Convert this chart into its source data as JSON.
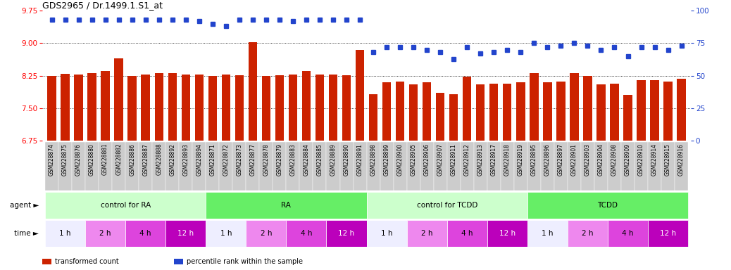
{
  "title": "GDS2965 / Dr.1499.1.S1_at",
  "samples": [
    "GSM228874",
    "GSM228875",
    "GSM228876",
    "GSM228880",
    "GSM228881",
    "GSM228882",
    "GSM228886",
    "GSM228887",
    "GSM228888",
    "GSM228892",
    "GSM228893",
    "GSM228894",
    "GSM228871",
    "GSM228872",
    "GSM228873",
    "GSM228877",
    "GSM228878",
    "GSM228879",
    "GSM228883",
    "GSM228884",
    "GSM228885",
    "GSM228889",
    "GSM228890",
    "GSM228891",
    "GSM228898",
    "GSM228899",
    "GSM228900",
    "GSM228905",
    "GSM228906",
    "GSM228907",
    "GSM228911",
    "GSM228912",
    "GSM228913",
    "GSM228917",
    "GSM228918",
    "GSM228919",
    "GSM228895",
    "GSM228896",
    "GSM228897",
    "GSM228901",
    "GSM228903",
    "GSM228904",
    "GSM228908",
    "GSM228909",
    "GSM228910",
    "GSM228914",
    "GSM228915",
    "GSM228916"
  ],
  "bar_values": [
    8.25,
    8.29,
    8.27,
    8.3,
    8.35,
    8.65,
    8.25,
    8.27,
    8.3,
    8.3,
    8.28,
    8.28,
    8.25,
    8.27,
    8.26,
    9.02,
    8.25,
    8.26,
    8.27,
    8.36,
    8.27,
    8.27,
    8.26,
    8.84,
    7.82,
    8.1,
    8.12,
    8.05,
    8.09,
    7.85,
    7.82,
    8.22,
    8.05,
    8.06,
    8.06,
    8.09,
    8.3,
    8.1,
    8.12,
    8.3,
    8.25,
    8.05,
    8.06,
    7.8,
    8.15,
    8.15,
    8.12,
    8.17
  ],
  "percentile_values": [
    93,
    93,
    93,
    93,
    93,
    93,
    93,
    93,
    93,
    93,
    93,
    92,
    90,
    88,
    93,
    93,
    93,
    93,
    92,
    93,
    93,
    93,
    93,
    93,
    68,
    72,
    72,
    72,
    70,
    68,
    63,
    72,
    67,
    68,
    70,
    68,
    75,
    72,
    73,
    75,
    73,
    70,
    72,
    65,
    72,
    72,
    70,
    73
  ],
  "ylim_left": [
    6.75,
    9.75
  ],
  "ylim_right": [
    0,
    100
  ],
  "yticks_left": [
    6.75,
    7.5,
    8.25,
    9.0,
    9.75
  ],
  "yticks_right": [
    0,
    25,
    50,
    75,
    100
  ],
  "hlines": [
    7.5,
    8.25,
    9.0
  ],
  "bar_color": "#CC2200",
  "dot_color": "#2244CC",
  "background_color": "#FFFFFF",
  "xticklabel_bg": "#CCCCCC",
  "agents": [
    {
      "label": "control for RA",
      "start": 0,
      "end": 12,
      "color": "#CCFFCC"
    },
    {
      "label": "RA",
      "start": 12,
      "end": 24,
      "color": "#66EE66"
    },
    {
      "label": "control for TCDD",
      "start": 24,
      "end": 36,
      "color": "#CCFFCC"
    },
    {
      "label": "TCDD",
      "start": 36,
      "end": 48,
      "color": "#66EE66"
    }
  ],
  "times": [
    {
      "label": "1 h",
      "start": 0,
      "end": 3,
      "color": "#EEEEFF",
      "tcolor": "black"
    },
    {
      "label": "2 h",
      "start": 3,
      "end": 6,
      "color": "#EE88EE",
      "tcolor": "black"
    },
    {
      "label": "4 h",
      "start": 6,
      "end": 9,
      "color": "#DD44DD",
      "tcolor": "black"
    },
    {
      "label": "12 h",
      "start": 9,
      "end": 12,
      "color": "#BB00BB",
      "tcolor": "white"
    },
    {
      "label": "1 h",
      "start": 12,
      "end": 15,
      "color": "#EEEEFF",
      "tcolor": "black"
    },
    {
      "label": "2 h",
      "start": 15,
      "end": 18,
      "color": "#EE88EE",
      "tcolor": "black"
    },
    {
      "label": "4 h",
      "start": 18,
      "end": 21,
      "color": "#DD44DD",
      "tcolor": "black"
    },
    {
      "label": "12 h",
      "start": 21,
      "end": 24,
      "color": "#BB00BB",
      "tcolor": "white"
    },
    {
      "label": "1 h",
      "start": 24,
      "end": 27,
      "color": "#EEEEFF",
      "tcolor": "black"
    },
    {
      "label": "2 h",
      "start": 27,
      "end": 30,
      "color": "#EE88EE",
      "tcolor": "black"
    },
    {
      "label": "4 h",
      "start": 30,
      "end": 33,
      "color": "#DD44DD",
      "tcolor": "black"
    },
    {
      "label": "12 h",
      "start": 33,
      "end": 36,
      "color": "#BB00BB",
      "tcolor": "white"
    },
    {
      "label": "1 h",
      "start": 36,
      "end": 39,
      "color": "#EEEEFF",
      "tcolor": "black"
    },
    {
      "label": "2 h",
      "start": 39,
      "end": 42,
      "color": "#EE88EE",
      "tcolor": "black"
    },
    {
      "label": "4 h",
      "start": 42,
      "end": 45,
      "color": "#DD44DD",
      "tcolor": "black"
    },
    {
      "label": "12 h",
      "start": 45,
      "end": 48,
      "color": "#BB00BB",
      "tcolor": "white"
    }
  ],
  "legend_items": [
    {
      "label": "transformed count",
      "color": "#CC2200"
    },
    {
      "label": "percentile rank within the sample",
      "color": "#2244CC"
    }
  ]
}
